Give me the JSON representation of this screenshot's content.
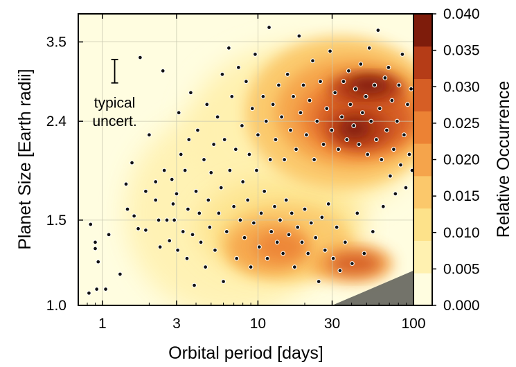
{
  "chart_data": {
    "type": "scatter",
    "title": "",
    "xlabel": "Orbital period [days]",
    "ylabel": "Planet Size [Earth radii]",
    "x_scale": "log",
    "y_scale": "log",
    "xlim": [
      0.7,
      100
    ],
    "ylim": [
      1.0,
      4.0
    ],
    "x_ticks": [
      {
        "value": 1,
        "label": "1"
      },
      {
        "value": 3,
        "label": "3"
      },
      {
        "value": 10,
        "label": "10"
      },
      {
        "value": 30,
        "label": "30"
      },
      {
        "value": 100,
        "label": "100"
      }
    ],
    "y_ticks": [
      {
        "value": 1.0,
        "label": "1.0"
      },
      {
        "value": 1.5,
        "label": "1.5"
      },
      {
        "value": 2.4,
        "label": "2.4"
      },
      {
        "value": 3.5,
        "label": "3.5"
      }
    ],
    "grid": true,
    "colorbar": {
      "label": "Relative Occurrence",
      "position": "right",
      "ticks": [
        "0.000",
        "0.005",
        "0.010",
        "0.015",
        "0.020",
        "0.025",
        "0.030",
        "0.035",
        "0.040"
      ],
      "range": [
        0.0,
        0.04
      ],
      "colors": [
        "#fffde0",
        "#fff1b0",
        "#fde28a",
        "#fbc86b",
        "#f5a44b",
        "#ec8234",
        "#d65e25",
        "#b53c17",
        "#7e1c0b"
      ]
    },
    "density_peaks": [
      {
        "x": 45,
        "y": 2.35,
        "level": 0.04
      },
      {
        "x": 50,
        "y": 2.8,
        "level": 0.035
      },
      {
        "x": 14,
        "y": 1.35,
        "level": 0.02
      },
      {
        "x": 42,
        "y": 1.22,
        "level": 0.025
      }
    ],
    "annotations": [
      {
        "text": "typical",
        "x": 1.2,
        "y": 2.62
      },
      {
        "text": "uncert.",
        "x": 1.2,
        "y": 2.4
      }
    ],
    "error_bar": {
      "x": 1.2,
      "y_low": 2.88,
      "y_high": 3.22
    },
    "shaded_region": {
      "description": "excluded",
      "corner": [
        [
          30,
          1.0
        ],
        [
          100,
          1.18
        ],
        [
          100,
          1.0
        ]
      ]
    },
    "points": [
      [
        0.82,
        1.06
      ],
      [
        0.84,
        1.47
      ],
      [
        0.9,
        1.31
      ],
      [
        0.9,
        1.35
      ],
      [
        0.94,
        1.23
      ],
      [
        0.92,
        1.08
      ],
      [
        1.1,
        1.4
      ],
      [
        1.05,
        1.08
      ],
      [
        1.3,
        1.16
      ],
      [
        1.42,
        1.78
      ],
      [
        1.45,
        1.58
      ],
      [
        1.55,
        1.97
      ],
      [
        1.6,
        1.53
      ],
      [
        1.7,
        1.44
      ],
      [
        1.75,
        3.25
      ],
      [
        1.9,
        1.43
      ],
      [
        1.9,
        1.72
      ],
      [
        2.0,
        2.25
      ],
      [
        2.2,
        1.8
      ],
      [
        2.2,
        1.65
      ],
      [
        2.3,
        1.5
      ],
      [
        2.35,
        1.32
      ],
      [
        2.45,
        3.05
      ],
      [
        2.5,
        1.9
      ],
      [
        2.6,
        1.5
      ],
      [
        2.7,
        1.36
      ],
      [
        2.8,
        1.82
      ],
      [
        2.85,
        1.62
      ],
      [
        2.9,
        1.5
      ],
      [
        3.0,
        1.7
      ],
      [
        3.05,
        1.3
      ],
      [
        3.1,
        2.5
      ],
      [
        3.2,
        2.05
      ],
      [
        3.3,
        1.42
      ],
      [
        3.4,
        1.9
      ],
      [
        3.5,
        1.25
      ],
      [
        3.55,
        1.58
      ],
      [
        3.6,
        2.2
      ],
      [
        3.7,
        2.75
      ],
      [
        3.8,
        1.4
      ],
      [
        3.9,
        1.1
      ],
      [
        4.0,
        1.72
      ],
      [
        4.1,
        2.3
      ],
      [
        4.2,
        1.55
      ],
      [
        4.3,
        1.35
      ],
      [
        4.5,
        2.0
      ],
      [
        4.6,
        1.2
      ],
      [
        4.7,
        2.6
      ],
      [
        4.8,
        1.65
      ],
      [
        4.9,
        1.45
      ],
      [
        5.0,
        1.88
      ],
      [
        5.2,
        2.15
      ],
      [
        5.3,
        1.3
      ],
      [
        5.5,
        2.45
      ],
      [
        5.6,
        1.55
      ],
      [
        5.8,
        1.75
      ],
      [
        5.9,
        3.0
      ],
      [
        6.0,
        1.12
      ],
      [
        6.1,
        2.2
      ],
      [
        6.3,
        1.42
      ],
      [
        6.5,
        3.4
      ],
      [
        6.6,
        1.9
      ],
      [
        6.8,
        2.7
      ],
      [
        7.0,
        1.6
      ],
      [
        7.2,
        2.1
      ],
      [
        7.3,
        1.25
      ],
      [
        7.5,
        3.1
      ],
      [
        7.7,
        1.5
      ],
      [
        7.9,
        2.35
      ],
      [
        8.0,
        1.8
      ],
      [
        8.2,
        1.38
      ],
      [
        8.4,
        2.9
      ],
      [
        8.6,
        1.65
      ],
      [
        8.8,
        2.05
      ],
      [
        9.0,
        1.2
      ],
      [
        9.2,
        2.55
      ],
      [
        9.4,
        1.48
      ],
      [
        9.6,
        3.3
      ],
      [
        9.8,
        1.9
      ],
      [
        10.0,
        2.25
      ],
      [
        10.2,
        1.32
      ],
      [
        10.5,
        1.55
      ],
      [
        10.8,
        2.7
      ],
      [
        11.0,
        1.72
      ],
      [
        11.3,
        2.4
      ],
      [
        11.5,
        1.25
      ],
      [
        11.8,
        3.75
      ],
      [
        12.0,
        2.0
      ],
      [
        12.2,
        1.42
      ],
      [
        12.5,
        2.6
      ],
      [
        12.8,
        1.6
      ],
      [
        13.0,
        2.2
      ],
      [
        13.3,
        1.35
      ],
      [
        13.6,
        2.85
      ],
      [
        13.9,
        1.5
      ],
      [
        14.2,
        2.45
      ],
      [
        14.5,
        1.28
      ],
      [
        14.8,
        2.0
      ],
      [
        15.2,
        1.65
      ],
      [
        15.5,
        3.0
      ],
      [
        15.8,
        1.4
      ],
      [
        16.2,
        2.3
      ],
      [
        16.5,
        1.55
      ],
      [
        16.9,
        2.7
      ],
      [
        17.2,
        1.2
      ],
      [
        17.6,
        2.1
      ],
      [
        18.0,
        1.45
      ],
      [
        18.4,
        3.6
      ],
      [
        18.8,
        2.5
      ],
      [
        19.2,
        1.35
      ],
      [
        19.6,
        2.85
      ],
      [
        20.0,
        1.58
      ],
      [
        20.5,
        2.25
      ],
      [
        21.0,
        1.28
      ],
      [
        21.5,
        2.65
      ],
      [
        22.0,
        1.48
      ],
      [
        22.5,
        3.2
      ],
      [
        23.0,
        2.0
      ],
      [
        23.5,
        1.38
      ],
      [
        24.0,
        2.4
      ],
      [
        24.6,
        1.12
      ],
      [
        25.2,
        2.9
      ],
      [
        25.8,
        1.52
      ],
      [
        26.4,
        2.15
      ],
      [
        27.0,
        1.3
      ],
      [
        27.7,
        2.55
      ],
      [
        28.4,
        1.62
      ],
      [
        29.1,
        3.35
      ],
      [
        29.8,
        2.3
      ],
      [
        30.5,
        1.25
      ],
      [
        31.3,
        2.75
      ],
      [
        32.1,
        1.45
      ],
      [
        32.9,
        2.1
      ],
      [
        33.7,
        1.18
      ],
      [
        34.6,
        2.45
      ],
      [
        35.5,
        2.9
      ],
      [
        36.4,
        1.35
      ],
      [
        37.3,
        2.2
      ],
      [
        38.3,
        3.05
      ],
      [
        39.3,
        2.6
      ],
      [
        40.3,
        1.22
      ],
      [
        41.3,
        2.35
      ],
      [
        42.4,
        2.8
      ],
      [
        43.5,
        1.55
      ],
      [
        44.6,
        2.15
      ],
      [
        45.8,
        3.15
      ],
      [
        47.0,
        2.5
      ],
      [
        48.2,
        1.28
      ],
      [
        49.4,
        2.7
      ],
      [
        50.7,
        2.05
      ],
      [
        52.0,
        3.4
      ],
      [
        53.4,
        2.4
      ],
      [
        54.8,
        1.42
      ],
      [
        56.2,
        2.85
      ],
      [
        57.7,
        2.2
      ],
      [
        59.2,
        3.7
      ],
      [
        60.7,
        2.55
      ],
      [
        62.3,
        2.0
      ],
      [
        63.9,
        1.6
      ],
      [
        65.6,
        2.95
      ],
      [
        67.3,
        2.3
      ],
      [
        69.1,
        3.1
      ],
      [
        70.9,
        1.85
      ],
      [
        72.7,
        2.65
      ],
      [
        74.6,
        2.1
      ],
      [
        76.5,
        1.7
      ],
      [
        78.5,
        2.4
      ],
      [
        80.6,
        2.85
      ],
      [
        82.7,
        1.95
      ],
      [
        84.8,
        3.3
      ],
      [
        87.0,
        2.25
      ],
      [
        89.3,
        1.75
      ],
      [
        91.6,
        2.6
      ],
      [
        94.0,
        2.05
      ],
      [
        96.5,
        2.8
      ],
      [
        98.0,
        1.9
      ]
    ]
  }
}
